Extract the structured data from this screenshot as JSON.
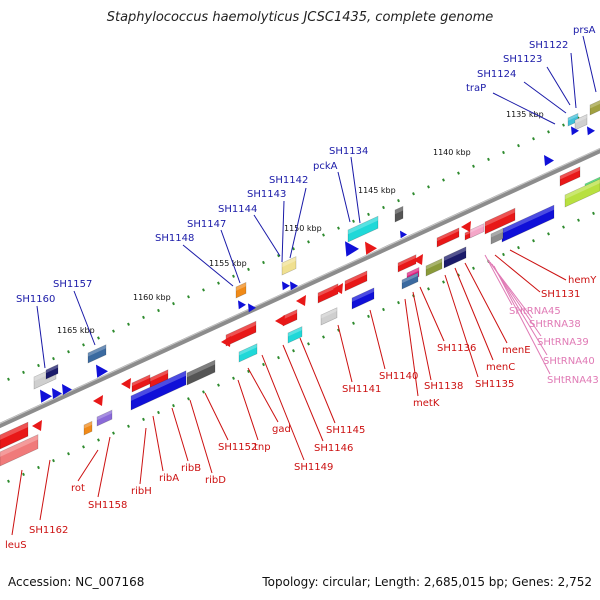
{
  "title": "Staphylococcus haemolyticus JCSC1435, complete genome",
  "footer": {
    "accession": "Accession: NC_007168",
    "summary": "Topology: circular; Length: 2,685,015 bp; Genes: 2,752"
  },
  "colors": {
    "backbone": "#8c8c8c",
    "tick": "#2e8b2e",
    "plus_label": "#1a1aa8",
    "minus_label": "#cc1111",
    "rna_label": "#e07ab5",
    "cds_red": "#e81818",
    "cds_blue": "#1010d8",
    "rna_pink": "#f4a6c8"
  },
  "kbp_labels": [
    "1135 kbp",
    "1140 kbp",
    "1145 kbp",
    "1150 kbp",
    "1155 kbp",
    "1160 kbp",
    "1165 kbp"
  ],
  "upper_labels": [
    "prsA",
    "SH1122",
    "SH1123",
    "SH1124",
    "traP",
    "SH1134",
    "pckA",
    "SH1142",
    "SH1143",
    "SH1144",
    "SH1147",
    "SH1148",
    "SH1157",
    "SH1160"
  ],
  "lower_labels": [
    "hemY",
    "SH1131",
    "menE",
    "menC",
    "SH1135",
    "SH1136",
    "SH1138",
    "metK",
    "SH1140",
    "SH1141",
    "SH1145",
    "SH1146",
    "SH1149",
    "gad",
    "tnp",
    "SH1152",
    "ribD",
    "ribB",
    "ribA",
    "ribH",
    "SH1158",
    "rot",
    "SH1162",
    "leuS"
  ],
  "rna_labels": [
    "SHtRNA45",
    "SHtRNA38",
    "SHtRNA39",
    "SHtRNA40",
    "SHtRNA43"
  ]
}
